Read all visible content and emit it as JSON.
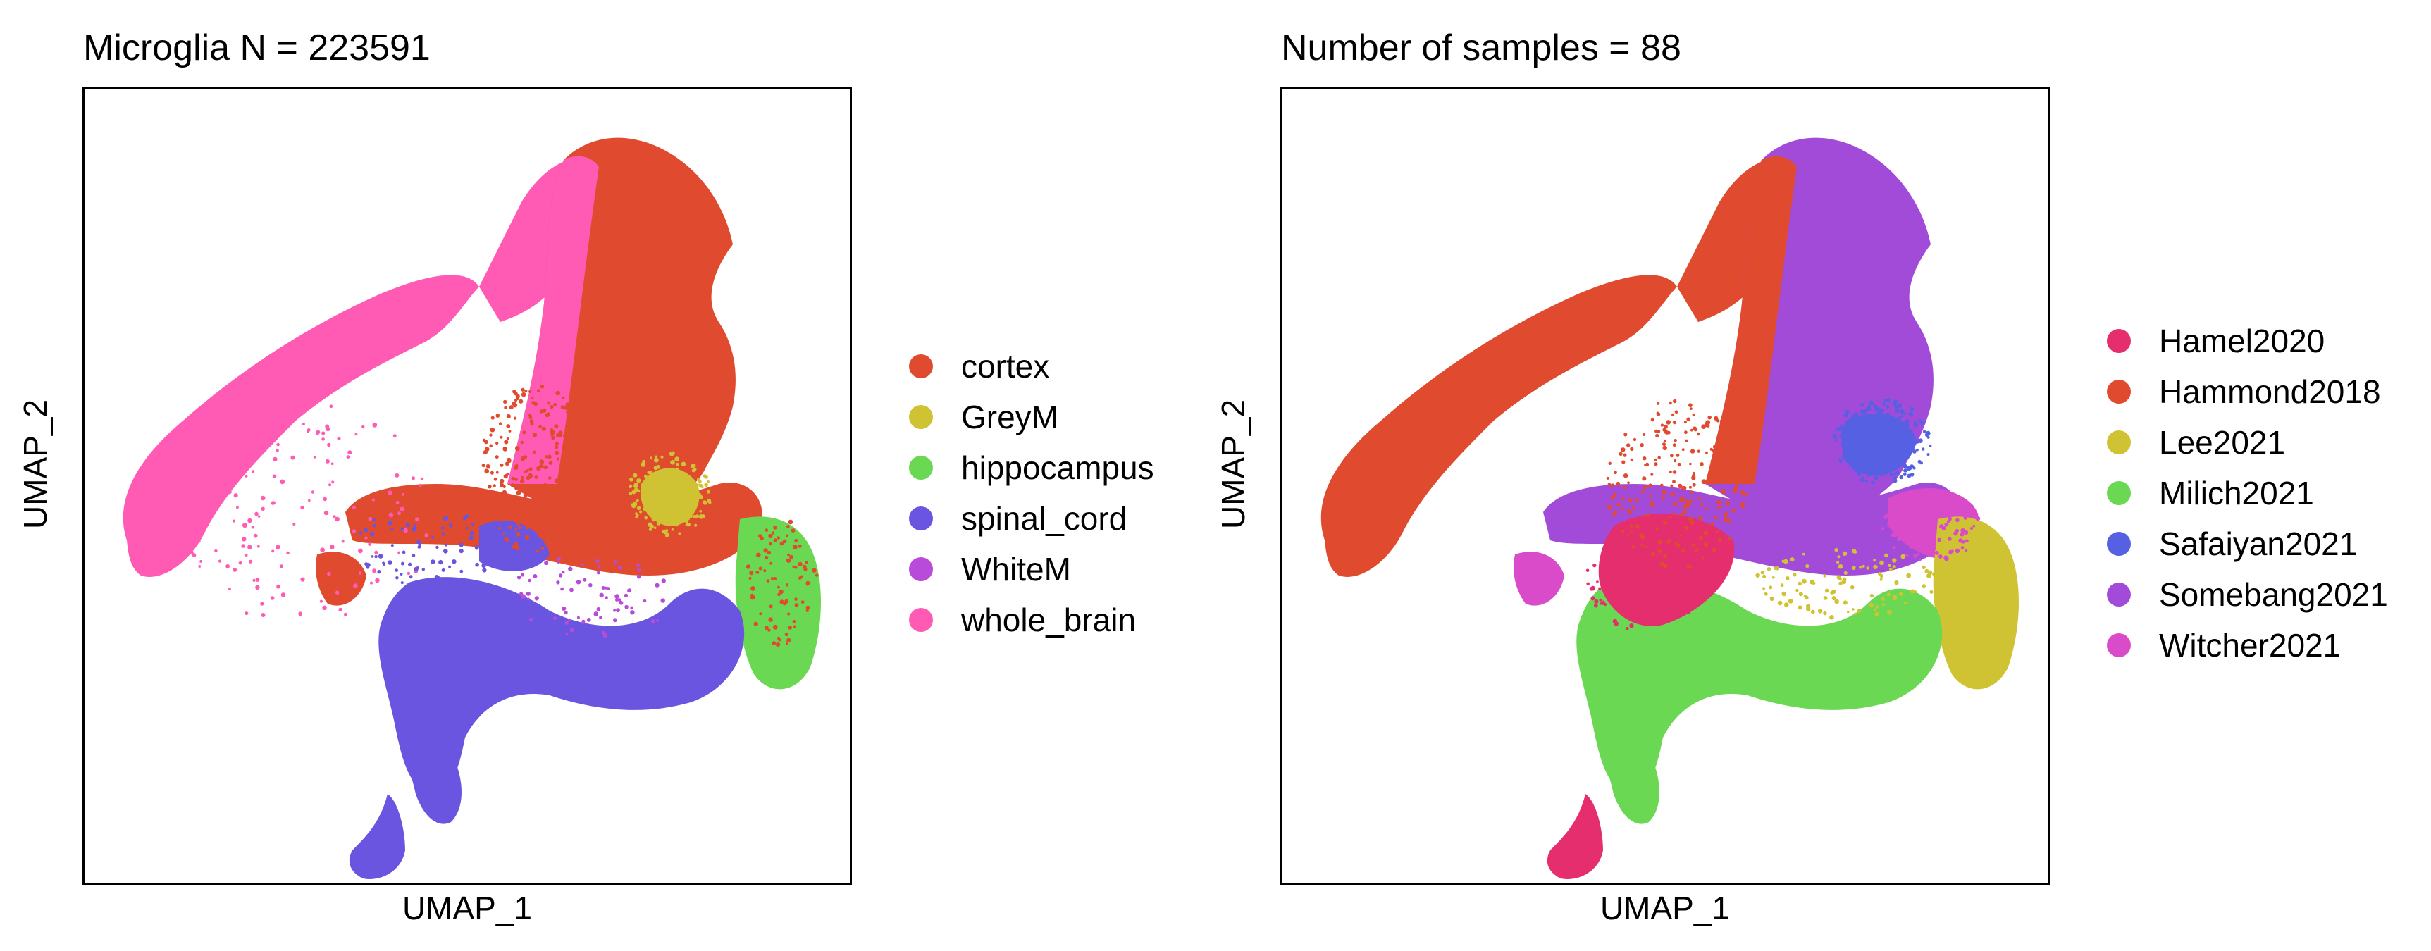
{
  "chart_data": [
    {
      "type": "scatter",
      "title": "Microglia N = 223591",
      "xlabel": "UMAP_1",
      "ylabel": "UMAP_2",
      "grid": false,
      "legend_placement": "right",
      "series": [
        {
          "name": "cortex",
          "color": "#E04A2F"
        },
        {
          "name": "GreyM",
          "color": "#CFC334"
        },
        {
          "name": "hippocampus",
          "color": "#6AD852"
        },
        {
          "name": "spinal_cord",
          "color": "#6A55E0"
        },
        {
          "name": "WhiteM",
          "color": "#B84BD9"
        },
        {
          "name": "whole_brain",
          "color": "#FF5AB4"
        }
      ]
    },
    {
      "type": "scatter",
      "title": "Number of samples = 88",
      "xlabel": "UMAP_1",
      "ylabel": "UMAP_2",
      "grid": false,
      "legend_placement": "right",
      "series": [
        {
          "name": "Hamel2020",
          "color": "#E52E6E"
        },
        {
          "name": "Hammond2018",
          "color": "#E04A2F"
        },
        {
          "name": "Lee2021",
          "color": "#CFC334"
        },
        {
          "name": "Milich2021",
          "color": "#6AD852"
        },
        {
          "name": "Safaiyan2021",
          "color": "#5660E3"
        },
        {
          "name": "Somebang2021",
          "color": "#A34BD9"
        },
        {
          "name": "Witcher2021",
          "color": "#D94BC8"
        }
      ]
    }
  ]
}
